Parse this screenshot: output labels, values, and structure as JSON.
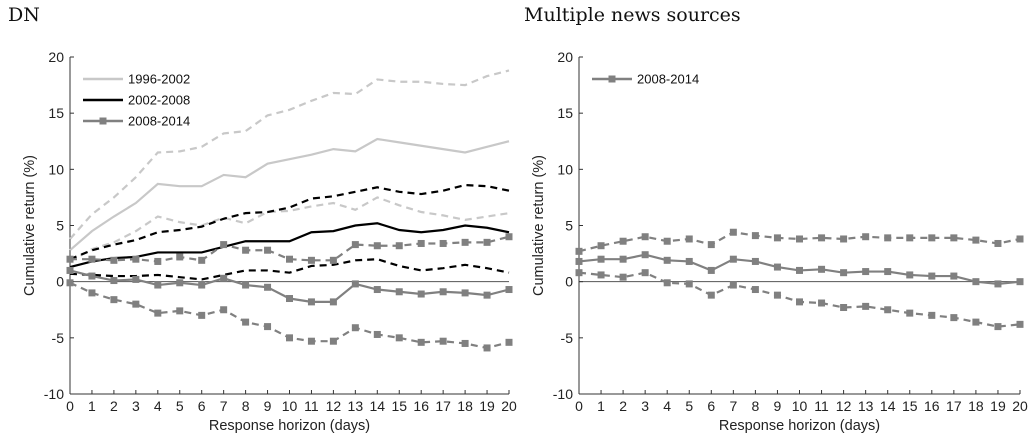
{
  "chart_data": [
    {
      "type": "line",
      "title": "DN",
      "xlabel": "Response horizon (days)",
      "ylabel": "Cumulative return (%)",
      "xlim": [
        0,
        20
      ],
      "ylim": [
        -10,
        20
      ],
      "x": [
        0,
        1,
        2,
        3,
        4,
        5,
        6,
        7,
        8,
        9,
        10,
        11,
        12,
        13,
        14,
        15,
        16,
        17,
        18,
        19,
        20
      ],
      "xticks": [
        "0",
        "1",
        "2",
        "3",
        "4",
        "5",
        "6",
        "7",
        "8",
        "9",
        "10",
        "11",
        "12",
        "13",
        "14",
        "15",
        "16",
        "17",
        "18",
        "19",
        "20"
      ],
      "yticks": [
        "-10",
        "-5",
        "0",
        "5",
        "10",
        "15",
        "20"
      ],
      "legend_position": "top-left",
      "grid": false,
      "series": [
        {
          "name": "1996-2002",
          "color": "#c8c8c8",
          "marker": "none",
          "values": [
            2.8,
            4.5,
            5.8,
            7.0,
            8.7,
            8.5,
            8.5,
            9.5,
            9.3,
            10.5,
            10.9,
            11.3,
            11.8,
            11.6,
            12.7,
            12.4,
            12.1,
            11.8,
            11.5,
            12.0,
            12.5
          ],
          "upper": [
            3.8,
            6.0,
            7.5,
            9.3,
            11.5,
            11.6,
            12.0,
            13.2,
            13.4,
            14.8,
            15.3,
            16.1,
            16.8,
            16.7,
            18.0,
            17.8,
            17.8,
            17.6,
            17.5,
            18.3,
            18.8
          ],
          "lower": [
            1.8,
            2.9,
            3.5,
            4.5,
            5.8,
            5.3,
            5.0,
            5.7,
            5.2,
            6.2,
            6.3,
            6.7,
            7.0,
            6.4,
            7.5,
            6.8,
            6.2,
            5.9,
            5.5,
            5.8,
            6.1
          ]
        },
        {
          "name": "2002-2008",
          "color": "#000000",
          "marker": "none",
          "values": [
            1.3,
            1.8,
            2.1,
            2.2,
            2.6,
            2.6,
            2.6,
            3.1,
            3.6,
            3.6,
            3.6,
            4.4,
            4.5,
            5.0,
            5.2,
            4.6,
            4.4,
            4.6,
            5.0,
            4.8,
            4.4
          ],
          "upper": [
            2.0,
            2.8,
            3.3,
            3.7,
            4.4,
            4.6,
            4.9,
            5.6,
            6.1,
            6.2,
            6.6,
            7.4,
            7.6,
            8.0,
            8.4,
            8.0,
            7.8,
            8.1,
            8.6,
            8.5,
            8.1
          ],
          "lower": [
            0.7,
            0.6,
            0.5,
            0.5,
            0.6,
            0.4,
            0.2,
            0.6,
            1.0,
            1.0,
            0.8,
            1.4,
            1.5,
            1.9,
            2.0,
            1.4,
            1.0,
            1.2,
            1.5,
            1.2,
            0.8
          ]
        },
        {
          "name": "2008-2014",
          "color": "#808080",
          "marker": "square",
          "values": [
            1.0,
            0.5,
            0.1,
            0.2,
            -0.3,
            -0.1,
            -0.3,
            0.3,
            -0.3,
            -0.5,
            -1.5,
            -1.8,
            -1.8,
            -0.2,
            -0.7,
            -0.9,
            -1.1,
            -0.9,
            -1.0,
            -1.2,
            -0.7
          ],
          "upper": [
            2.0,
            2.0,
            1.9,
            2.0,
            1.8,
            2.2,
            1.9,
            3.3,
            2.8,
            2.8,
            2.0,
            1.9,
            1.9,
            3.3,
            3.2,
            3.2,
            3.4,
            3.4,
            3.5,
            3.5,
            4.0
          ],
          "lower": [
            -0.1,
            -1.0,
            -1.6,
            -2.0,
            -2.8,
            -2.6,
            -3.0,
            -2.5,
            -3.6,
            -4.0,
            -5.0,
            -5.3,
            -5.3,
            -4.1,
            -4.7,
            -5.0,
            -5.4,
            -5.3,
            -5.5,
            -5.9,
            -5.4
          ]
        }
      ]
    },
    {
      "type": "line",
      "title": "Multiple news sources",
      "xlabel": "Response horizon (days)",
      "ylabel": "Cumulative return (%)",
      "xlim": [
        0,
        20
      ],
      "ylim": [
        -10,
        20
      ],
      "x": [
        0,
        1,
        2,
        3,
        4,
        5,
        6,
        7,
        8,
        9,
        10,
        11,
        12,
        13,
        14,
        15,
        16,
        17,
        18,
        19,
        20
      ],
      "xticks": [
        "0",
        "1",
        "2",
        "3",
        "4",
        "5",
        "6",
        "7",
        "8",
        "9",
        "10",
        "11",
        "12",
        "13",
        "14",
        "15",
        "16",
        "17",
        "18",
        "19",
        "20"
      ],
      "yticks": [
        "-10",
        "-5",
        "0",
        "5",
        "10",
        "15",
        "20"
      ],
      "legend_position": "top-left",
      "grid": false,
      "series": [
        {
          "name": "2008-2014",
          "color": "#808080",
          "marker": "square",
          "values": [
            1.8,
            2.0,
            2.0,
            2.4,
            1.9,
            1.8,
            1.0,
            2.0,
            1.8,
            1.3,
            1.0,
            1.1,
            0.8,
            0.9,
            0.9,
            0.6,
            0.5,
            0.5,
            0.0,
            -0.2,
            0.0
          ],
          "upper": [
            2.7,
            3.2,
            3.6,
            4.0,
            3.6,
            3.8,
            3.3,
            4.4,
            4.1,
            3.9,
            3.8,
            3.9,
            3.8,
            4.0,
            3.9,
            3.9,
            3.9,
            3.9,
            3.7,
            3.4,
            3.8
          ],
          "lower": [
            0.8,
            0.6,
            0.4,
            0.8,
            -0.1,
            -0.2,
            -1.2,
            -0.3,
            -0.7,
            -1.2,
            -1.8,
            -1.9,
            -2.3,
            -2.2,
            -2.5,
            -2.8,
            -3.0,
            -3.2,
            -3.6,
            -4.0,
            -3.8
          ]
        }
      ]
    }
  ]
}
